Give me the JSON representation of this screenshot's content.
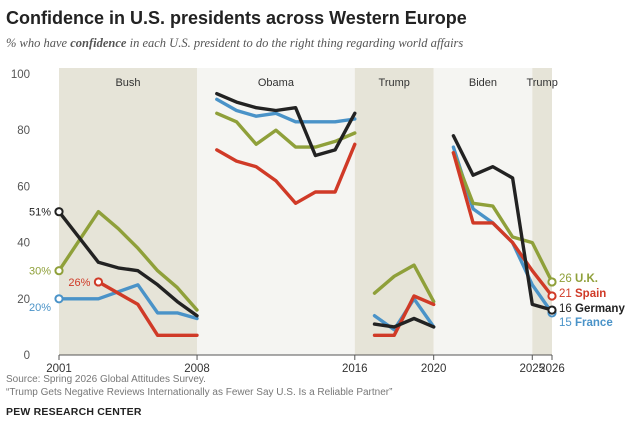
{
  "title": "Confidence in U.S. presidents across Western Europe",
  "subtitle_prefix": "% who have ",
  "subtitle_bold": "confidence",
  "subtitle_suffix": " in each U.S. president to do the right thing regarding world affairs",
  "source": "Source: Spring 2026 Global Attitudes Survey.",
  "report": "“Trump Gets Negative Reviews Internationally as Fewer Say U.S. Is a Reliable Partner”",
  "org": "PEW RESEARCH CENTER",
  "colors": {
    "uk": "#8fa03a",
    "spain": "#d03a27",
    "germany": "#222222",
    "france": "#4a93c8",
    "shade": "#e6e4d8",
    "light": "#f5f5f2"
  },
  "chart_data": {
    "type": "line",
    "ylim": [
      0,
      100
    ],
    "yticks": [
      0,
      20,
      40,
      60,
      80,
      100
    ],
    "xlim": [
      2001,
      2026
    ],
    "xticks": [
      2001,
      2008,
      2016,
      2020,
      2025,
      2026
    ],
    "periods": [
      {
        "label": "Bush",
        "start": 2001,
        "end": 2008,
        "shade": "dark"
      },
      {
        "label": "Obama",
        "start": 2008,
        "end": 2016,
        "shade": "light"
      },
      {
        "label": "Trump",
        "start": 2016,
        "end": 2020,
        "shade": "dark"
      },
      {
        "label": "Biden",
        "start": 2020,
        "end": 2025,
        "shade": "light"
      },
      {
        "label": "Trump",
        "start": 2025,
        "end": 2026,
        "shade": "dark"
      }
    ],
    "series": [
      {
        "key": "france",
        "name": "France",
        "start_label": "20%",
        "end_label": "15",
        "segments": [
          [
            [
              2001,
              20
            ],
            [
              2002,
              20
            ],
            [
              2003,
              20
            ],
            [
              2005,
              25
            ],
            [
              2006,
              15
            ],
            [
              2007,
              15
            ],
            [
              2008,
              13
            ]
          ],
          [
            [
              2009,
              91
            ],
            [
              2010,
              87
            ],
            [
              2011,
              85
            ],
            [
              2012,
              86
            ],
            [
              2013,
              83
            ],
            [
              2014,
              83
            ],
            [
              2015,
              83
            ],
            [
              2016,
              84
            ]
          ],
          [
            [
              2017,
              14
            ],
            [
              2018,
              9
            ],
            [
              2019,
              20
            ],
            [
              2020,
              10
            ]
          ],
          [
            [
              2021,
              74
            ],
            [
              2022,
              52
            ],
            [
              2023,
              47
            ],
            [
              2024,
              40
            ],
            [
              2025,
              25
            ],
            [
              2026,
              15
            ]
          ]
        ]
      },
      {
        "key": "uk",
        "name": "U.K.",
        "start_label": "30%",
        "end_label": "26",
        "segments": [
          [
            [
              2001,
              30
            ],
            [
              2003,
              51
            ],
            [
              2004,
              45
            ],
            [
              2005,
              38
            ],
            [
              2006,
              30
            ],
            [
              2007,
              24
            ],
            [
              2008,
              16
            ]
          ],
          [
            [
              2009,
              86
            ],
            [
              2010,
              83
            ],
            [
              2011,
              75
            ],
            [
              2012,
              80
            ],
            [
              2013,
              74
            ],
            [
              2014,
              74
            ],
            [
              2015,
              76
            ],
            [
              2016,
              79
            ]
          ],
          [
            [
              2017,
              22
            ],
            [
              2018,
              28
            ],
            [
              2019,
              32
            ],
            [
              2020,
              19
            ]
          ],
          [
            [
              2021,
              72
            ],
            [
              2022,
              54
            ],
            [
              2023,
              53
            ],
            [
              2024,
              42
            ],
            [
              2025,
              40
            ],
            [
              2026,
              26
            ]
          ]
        ]
      },
      {
        "key": "spain",
        "name": "Spain",
        "start_label": "26%",
        "end_label": "21",
        "segments": [
          [
            [
              2003,
              26
            ],
            [
              2005,
              18
            ],
            [
              2006,
              7
            ],
            [
              2007,
              7
            ],
            [
              2008,
              7
            ]
          ],
          [
            [
              2009,
              73
            ],
            [
              2010,
              69
            ],
            [
              2011,
              67
            ],
            [
              2012,
              62
            ],
            [
              2013,
              54
            ],
            [
              2014,
              58
            ],
            [
              2015,
              58
            ],
            [
              2016,
              75
            ]
          ],
          [
            [
              2017,
              7
            ],
            [
              2018,
              7
            ],
            [
              2019,
              21
            ],
            [
              2020,
              18
            ]
          ],
          [
            [
              2021,
              72
            ],
            [
              2022,
              47
            ],
            [
              2023,
              47
            ],
            [
              2024,
              40
            ],
            [
              2025,
              30
            ],
            [
              2026,
              21
            ]
          ]
        ]
      },
      {
        "key": "germany",
        "name": "Germany",
        "start_label": "51%",
        "end_label": "16",
        "segments": [
          [
            [
              2001,
              51
            ],
            [
              2003,
              33
            ],
            [
              2004,
              31
            ],
            [
              2005,
              30
            ],
            [
              2006,
              25
            ],
            [
              2007,
              19
            ],
            [
              2008,
              14
            ]
          ],
          [
            [
              2009,
              93
            ],
            [
              2010,
              90
            ],
            [
              2011,
              88
            ],
            [
              2012,
              87
            ],
            [
              2013,
              88
            ],
            [
              2014,
              71
            ],
            [
              2015,
              73
            ],
            [
              2016,
              86
            ]
          ],
          [
            [
              2017,
              11
            ],
            [
              2018,
              10
            ],
            [
              2019,
              13
            ],
            [
              2020,
              10
            ]
          ],
          [
            [
              2021,
              78
            ],
            [
              2022,
              64
            ],
            [
              2023,
              67
            ],
            [
              2024,
              63
            ],
            [
              2025,
              18
            ],
            [
              2026,
              16
            ]
          ]
        ]
      }
    ]
  }
}
